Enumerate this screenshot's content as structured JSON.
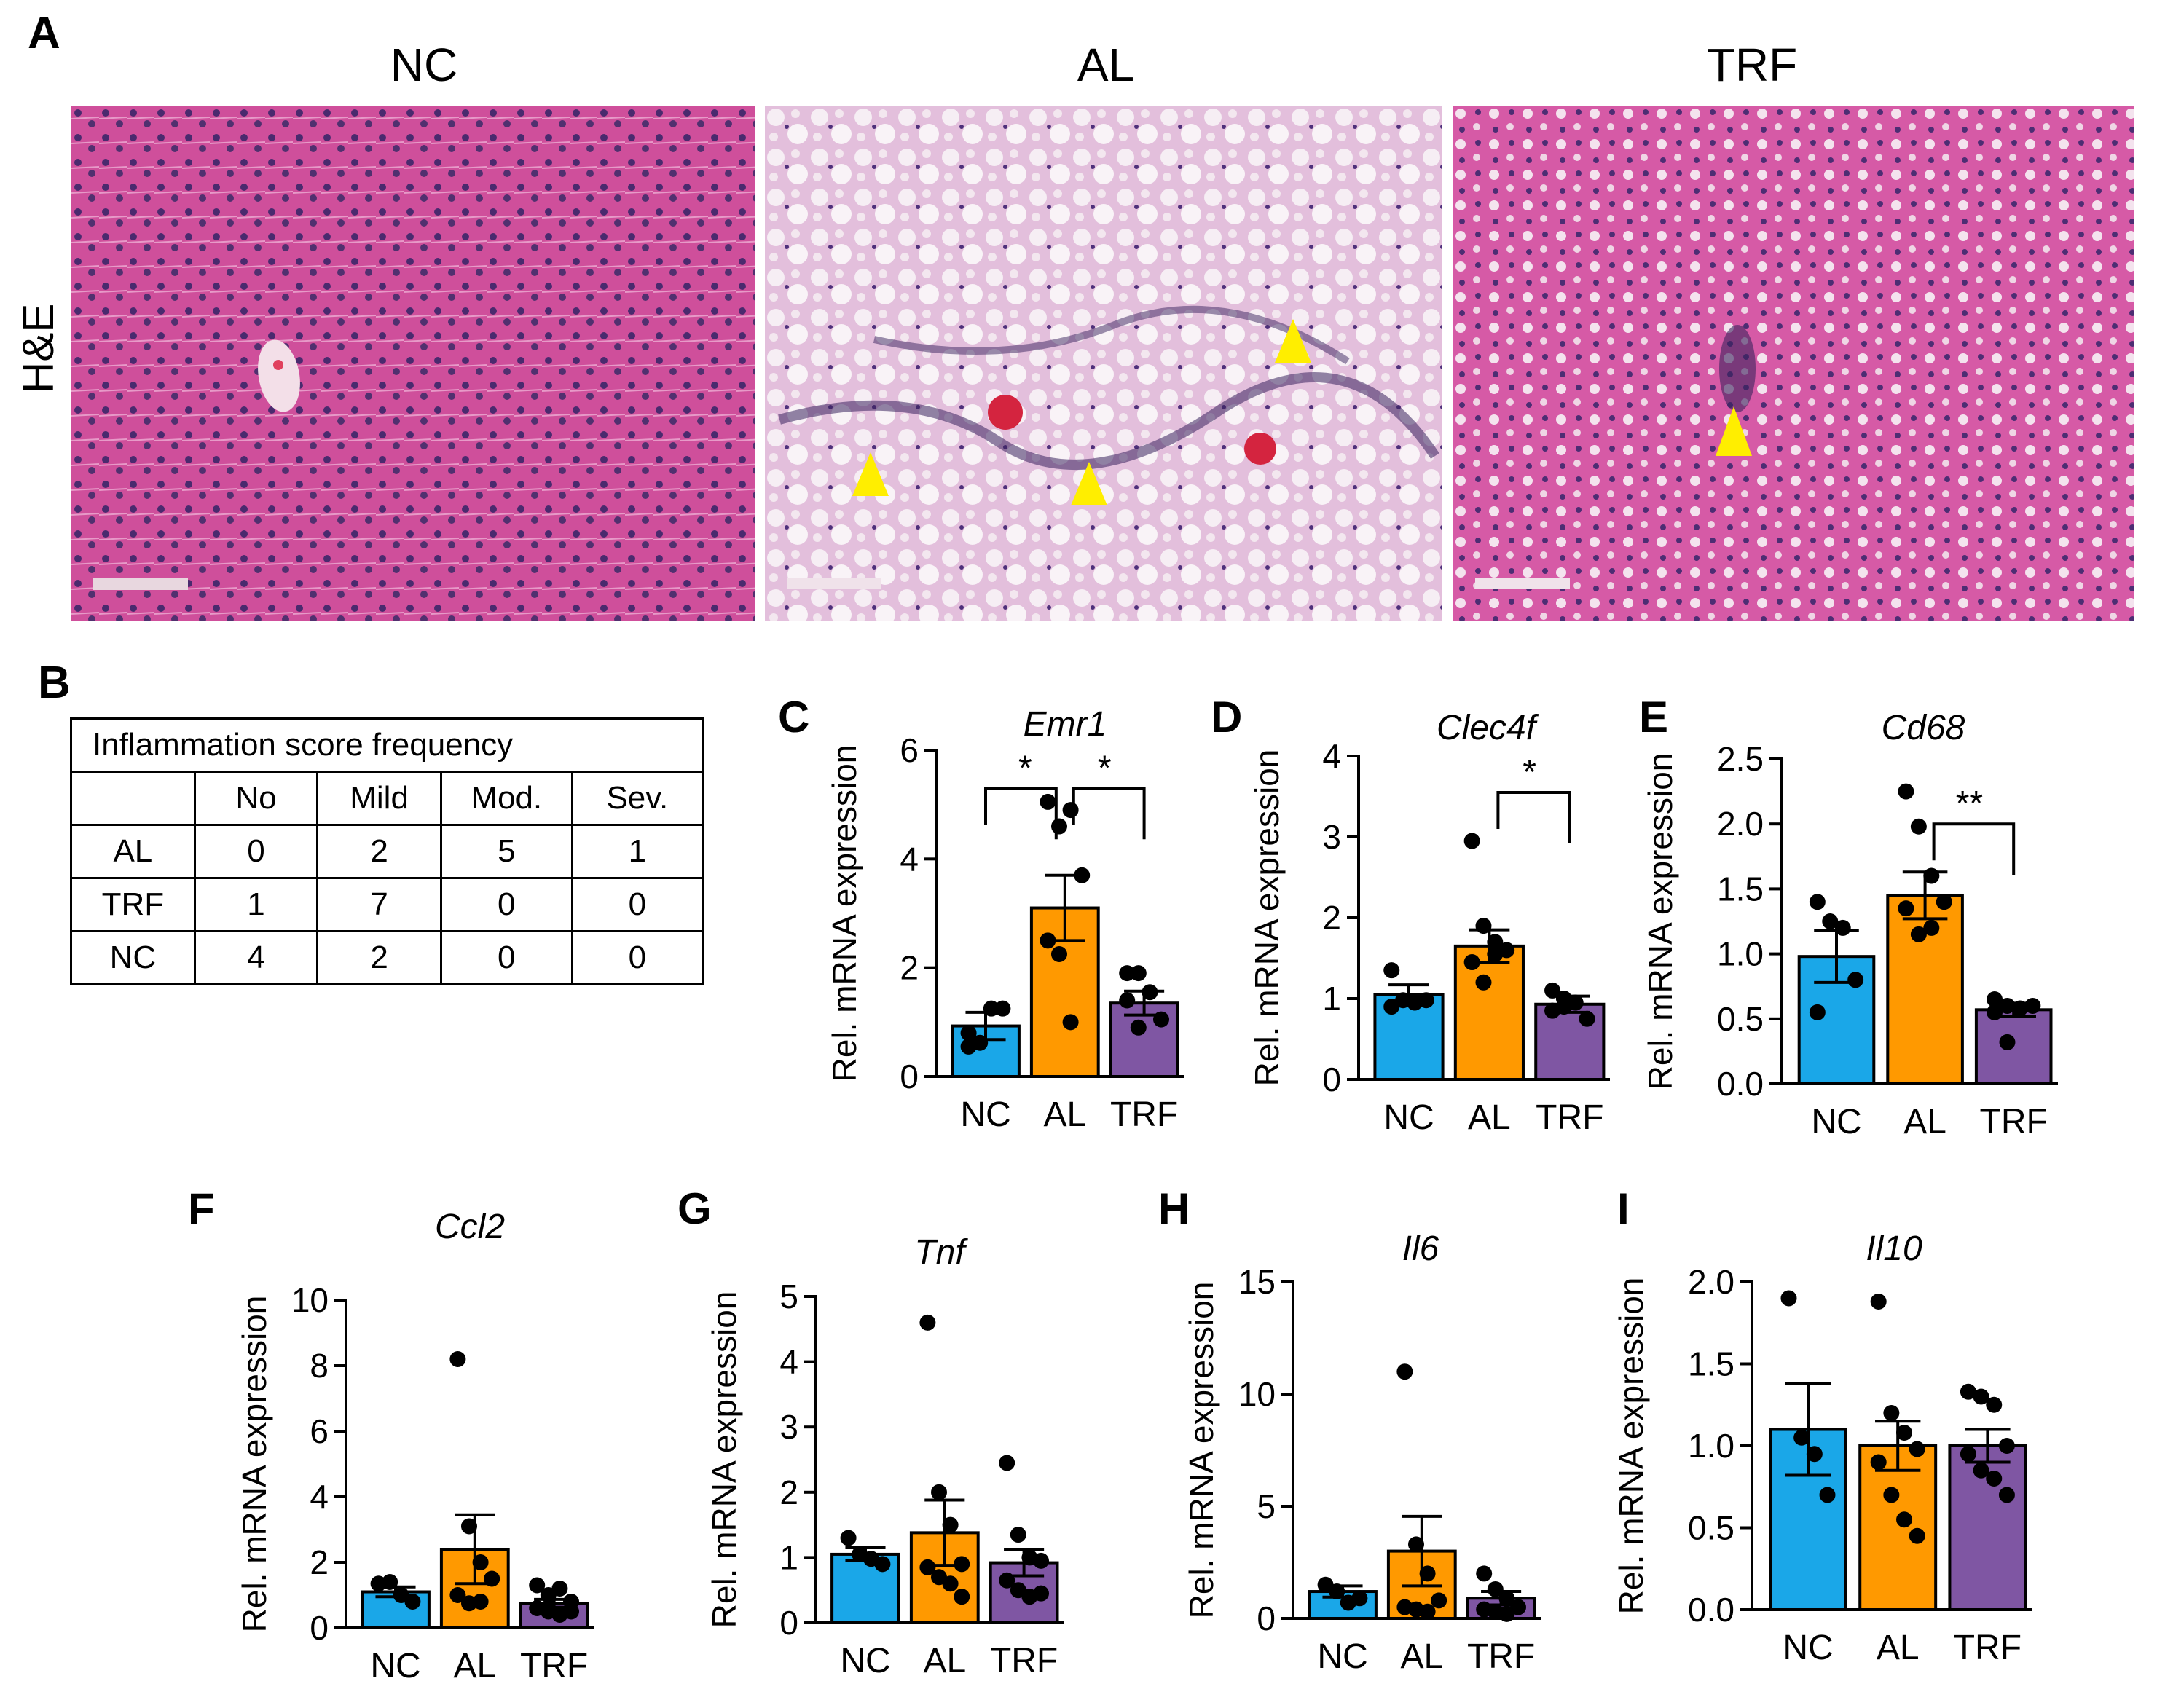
{
  "panel_a": {
    "letter": "A",
    "row_label": "H&E",
    "images": [
      {
        "title": "NC"
      },
      {
        "title": "AL"
      },
      {
        "title": "TRF"
      }
    ]
  },
  "panel_b": {
    "letter": "B",
    "table_title": "Inflammation score frequency",
    "columns": [
      "No",
      "Mild",
      "Mod.",
      "Sev."
    ],
    "rows": [
      {
        "group": "AL",
        "values": [
          "0",
          "2",
          "5",
          "1"
        ]
      },
      {
        "group": "TRF",
        "values": [
          "1",
          "7",
          "0",
          "0"
        ]
      },
      {
        "group": "NC",
        "values": [
          "4",
          "2",
          "0",
          "0"
        ]
      }
    ]
  },
  "colors": {
    "NC": "#1aa7e8",
    "AL": "#ff9900",
    "TRF": "#7f56a3",
    "arrow": "#ffee00"
  },
  "chart_data": [
    {
      "panel": "C",
      "type": "bar",
      "title": "Emr1",
      "ylabel": "Rel. mRNA expression",
      "categories": [
        "NC",
        "AL",
        "TRF"
      ],
      "values": [
        0.93,
        3.1,
        1.35
      ],
      "sem": [
        0.25,
        0.6,
        0.22
      ],
      "ylim": [
        0,
        6
      ],
      "yticks": [
        "0",
        "2",
        "4",
        "6"
      ],
      "yticks_values": [
        0,
        2,
        4,
        6
      ],
      "points": [
        [
          0.55,
          0.62,
          1.25,
          1.25,
          0.8
        ],
        [
          5.05,
          4.6,
          4.9,
          3.7,
          2.5,
          2.25,
          1.0
        ],
        [
          1.9,
          1.9,
          1.55,
          1.05,
          1.4,
          0.9
        ]
      ],
      "significance": [
        {
          "from": 0,
          "to": 1,
          "label": "*",
          "y": 5.3
        },
        {
          "from": 1,
          "to": 2,
          "label": "*",
          "y": 5.3
        }
      ]
    },
    {
      "panel": "D",
      "type": "bar",
      "title": "Clec4f",
      "ylabel": "Rel. mRNA expression",
      "categories": [
        "NC",
        "AL",
        "TRF"
      ],
      "values": [
        1.05,
        1.65,
        0.93
      ],
      "sem": [
        0.12,
        0.2,
        0.1
      ],
      "ylim": [
        0,
        4
      ],
      "yticks": [
        "0",
        "1",
        "2",
        "3",
        "4"
      ],
      "yticks_values": [
        0,
        1,
        2,
        3,
        4
      ],
      "points": [
        [
          1.35,
          0.98,
          0.95,
          0.98,
          0.9
        ],
        [
          2.95,
          1.9,
          1.7,
          1.6,
          1.45,
          1.2,
          1.55
        ],
        [
          1.1,
          0.9,
          0.95,
          0.75,
          0.85,
          1.0
        ]
      ],
      "significance": [
        {
          "from": 1,
          "to": 2,
          "label": "*",
          "y": 3.55
        }
      ]
    },
    {
      "panel": "E",
      "type": "bar",
      "title": "Cd68",
      "ylabel": "Rel. mRNA expression",
      "categories": [
        "NC",
        "AL",
        "TRF"
      ],
      "values": [
        0.98,
        1.45,
        0.57
      ],
      "sem": [
        0.2,
        0.18,
        0.05
      ],
      "ylim": [
        0,
        2.5
      ],
      "yticks": [
        "0.0",
        "0.5",
        "1.0",
        "1.5",
        "2.0",
        "2.5"
      ],
      "yticks_values": [
        0,
        0.5,
        1.0,
        1.5,
        2.0,
        2.5
      ],
      "points": [
        [
          1.4,
          1.25,
          1.2,
          0.8,
          0.55
        ],
        [
          2.25,
          1.98,
          1.6,
          1.4,
          1.35,
          1.15,
          1.2
        ],
        [
          0.65,
          0.6,
          0.58,
          0.6,
          0.55,
          0.32
        ]
      ],
      "significance": [
        {
          "from": 1,
          "to": 2,
          "label": "**",
          "y": 2.0
        }
      ]
    },
    {
      "panel": "F",
      "type": "bar",
      "title": "Ccl2",
      "ylabel": "Rel. mRNA expression",
      "categories": [
        "NC",
        "AL",
        "TRF"
      ],
      "values": [
        1.1,
        2.4,
        0.75
      ],
      "sem": [
        0.15,
        1.05,
        0.12
      ],
      "ylim": [
        0,
        10
      ],
      "yticks": [
        "0",
        "2",
        "4",
        "6",
        "8",
        "10"
      ],
      "yticks_values": [
        0,
        2,
        4,
        6,
        8,
        10
      ],
      "points": [
        [
          1.35,
          1.4,
          1.0,
          0.8
        ],
        [
          8.2,
          3.1,
          2.0,
          1.5,
          1.0,
          0.75,
          0.8
        ],
        [
          1.3,
          1.0,
          1.2,
          0.8,
          0.6,
          0.5,
          0.4,
          0.5
        ]
      ],
      "significance": []
    },
    {
      "panel": "G",
      "type": "bar",
      "title": "Tnf",
      "ylabel": "Rel. mRNA expression",
      "categories": [
        "NC",
        "AL",
        "TRF"
      ],
      "values": [
        1.05,
        1.38,
        0.92
      ],
      "sem": [
        0.1,
        0.5,
        0.2
      ],
      "ylim": [
        0,
        5
      ],
      "yticks": [
        "0",
        "1",
        "2",
        "3",
        "4",
        "5"
      ],
      "yticks_values": [
        0,
        1,
        2,
        3,
        4,
        5
      ],
      "points": [
        [
          1.3,
          1.05,
          0.98,
          0.9
        ],
        [
          4.6,
          2.0,
          1.5,
          0.9,
          0.85,
          0.7,
          0.6,
          0.4
        ],
        [
          2.45,
          1.35,
          1.0,
          0.95,
          0.65,
          0.5,
          0.4,
          0.45
        ]
      ],
      "significance": []
    },
    {
      "panel": "H",
      "type": "bar",
      "title": "Il6",
      "ylabel": "Rel. mRNA expression",
      "categories": [
        "NC",
        "AL",
        "TRF"
      ],
      "values": [
        1.2,
        3.0,
        0.9
      ],
      "sem": [
        0.25,
        1.55,
        0.3
      ],
      "ylim": [
        0,
        15
      ],
      "yticks": [
        "0",
        "5",
        "10",
        "15"
      ],
      "yticks_values": [
        0,
        5,
        10,
        15
      ],
      "points": [
        [
          1.5,
          1.2,
          0.7,
          0.9
        ],
        [
          11.0,
          3.3,
          2.0,
          0.8,
          0.5,
          0.4,
          0.3
        ],
        [
          2.0,
          1.3,
          0.9,
          0.5,
          0.4,
          0.3,
          0.2
        ]
      ],
      "significance": []
    },
    {
      "panel": "I",
      "type": "bar",
      "title": "Il10",
      "ylabel": "Rel. mRNA expression",
      "categories": [
        "NC",
        "AL",
        "TRF"
      ],
      "values": [
        1.1,
        1.0,
        1.0
      ],
      "sem": [
        0.28,
        0.15,
        0.1
      ],
      "ylim": [
        0,
        2.0
      ],
      "yticks": [
        "0.0",
        "0.5",
        "1.0",
        "1.5",
        "2.0"
      ],
      "yticks_values": [
        0,
        0.5,
        1.0,
        1.5,
        2.0
      ],
      "points": [
        [
          1.9,
          1.05,
          0.95,
          0.7
        ],
        [
          1.88,
          1.2,
          1.08,
          0.98,
          0.9,
          0.7,
          0.55,
          0.45
        ],
        [
          1.33,
          1.3,
          1.25,
          1.0,
          0.95,
          0.85,
          0.8,
          0.7
        ]
      ],
      "significance": []
    }
  ]
}
